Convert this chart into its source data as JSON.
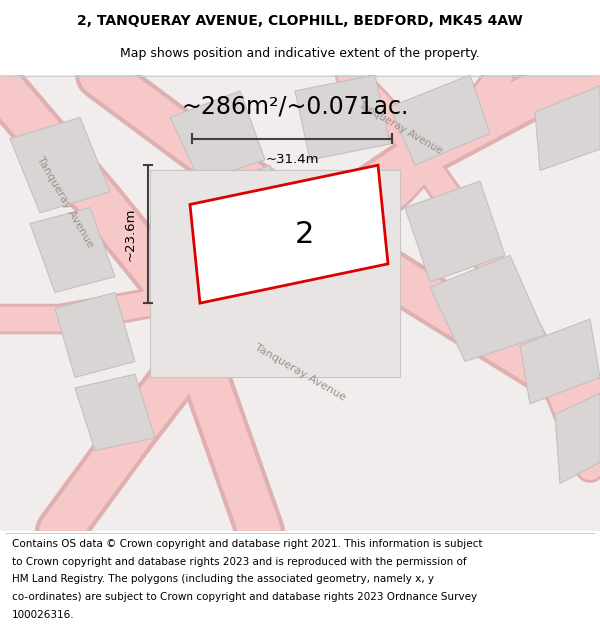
{
  "title_line1": "2, TANQUERAY AVENUE, CLOPHILL, BEDFORD, MK45 4AW",
  "title_line2": "Map shows position and indicative extent of the property.",
  "area_text": "~286m²/~0.071ac.",
  "property_number": "2",
  "dim_width": "~31.4m",
  "dim_height": "~23.6m",
  "footer_text": "Contains OS data © Crown copyright and database right 2021. This information is subject to Crown copyright and database rights 2023 and is reproduced with the permission of HM Land Registry. The polygons (including the associated geometry, namely x, y co-ordinates) are subject to Crown copyright and database rights 2023 Ordnance Survey 100026316.",
  "bg_color": "#f5f0f0",
  "map_bg": "#f0eded",
  "road_color_light": "#f5b8b8",
  "road_color_dark": "#d0c8c8",
  "block_color": "#d8d5d5",
  "block_fill": "#e8e5e5",
  "property_fill": "#e8e5e5",
  "red_outline": "#dd0000",
  "dim_line_color": "#404040",
  "title_fontsize": 10,
  "subtitle_fontsize": 9,
  "area_fontsize": 16,
  "num_fontsize": 18,
  "footer_fontsize": 7.5
}
